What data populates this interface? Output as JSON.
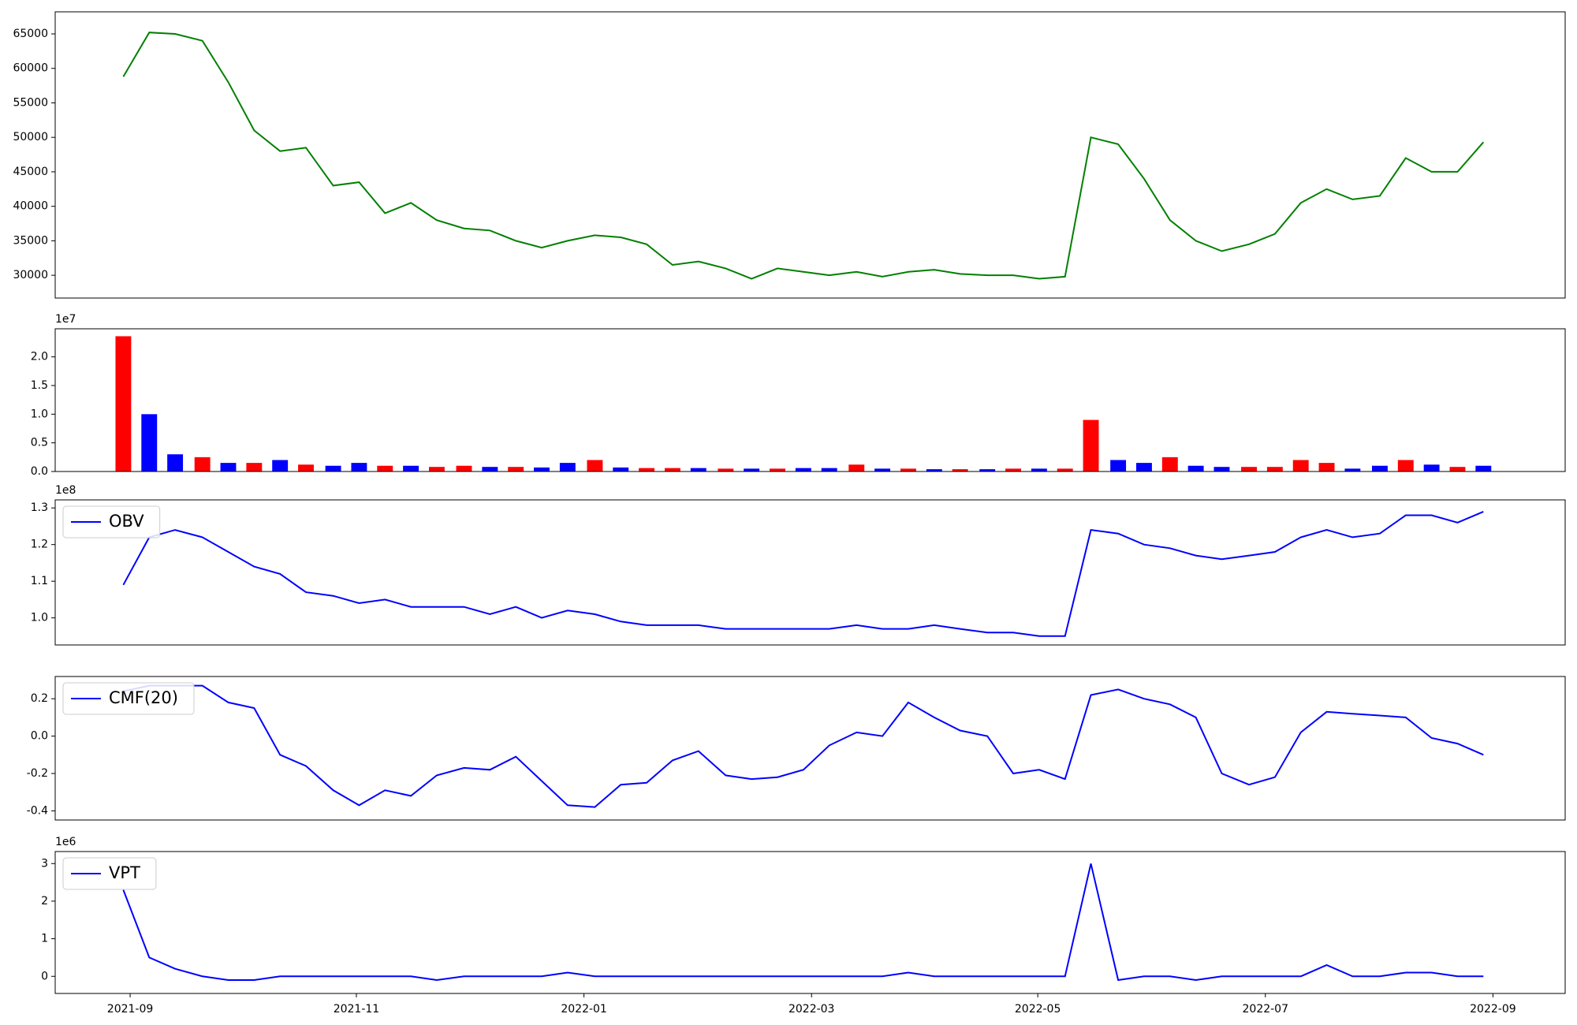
{
  "chart_data": [
    {
      "type": "line",
      "xlim": [
        2021.612,
        2022.72
      ],
      "ylim": [
        26700,
        68200
      ],
      "x": [
        2021.662,
        2021.681,
        2021.7,
        2021.72,
        2021.739,
        2021.758,
        2021.777,
        2021.796,
        2021.816,
        2021.835,
        2021.854,
        2021.873,
        2021.892,
        2021.912,
        2021.931,
        2021.95,
        2021.969,
        2021.988,
        2022.008,
        2022.027,
        2022.046,
        2022.065,
        2022.084,
        2022.104,
        2022.123,
        2022.142,
        2022.161,
        2022.18,
        2022.2,
        2022.219,
        2022.238,
        2022.257,
        2022.276,
        2022.296,
        2022.315,
        2022.334,
        2022.353,
        2022.372,
        2022.392,
        2022.411,
        2022.43,
        2022.449,
        2022.468,
        2022.488,
        2022.507,
        2022.526,
        2022.545,
        2022.564,
        2022.584,
        2022.603,
        2022.622,
        2022.641,
        2022.66
      ],
      "yticks": [
        30000,
        35000,
        40000,
        45000,
        50000,
        55000,
        60000,
        65000
      ],
      "series": [
        {
          "color": "#008000",
          "values": [
            58800,
            65200,
            65000,
            64000,
            58000,
            51000,
            48000,
            48500,
            43000,
            43500,
            39000,
            40500,
            38000,
            36800,
            36500,
            35000,
            34000,
            35000,
            35800,
            35500,
            34500,
            31500,
            32000,
            31000,
            29500,
            31000,
            30500,
            30000,
            30500,
            29800,
            30500,
            30800,
            30200,
            30000,
            30000,
            29500,
            29800,
            50000,
            49000,
            44000,
            38000,
            35000,
            33500,
            34500,
            36000,
            40500,
            42500,
            41000,
            41500,
            47000,
            45000,
            45000,
            49300
          ]
        }
      ]
    },
    {
      "type": "bar",
      "xlim": [
        2021.612,
        2022.72
      ],
      "ylim": [
        0,
        2.49
      ],
      "offset_label": "1e7",
      "x": [
        2021.662,
        2021.681,
        2021.7,
        2021.72,
        2021.739,
        2021.758,
        2021.777,
        2021.796,
        2021.816,
        2021.835,
        2021.854,
        2021.873,
        2021.892,
        2021.912,
        2021.931,
        2021.95,
        2021.969,
        2021.988,
        2022.008,
        2022.027,
        2022.046,
        2022.065,
        2022.084,
        2022.104,
        2022.123,
        2022.142,
        2022.161,
        2022.18,
        2022.2,
        2022.219,
        2022.238,
        2022.257,
        2022.276,
        2022.296,
        2022.315,
        2022.334,
        2022.353,
        2022.372,
        2022.392,
        2022.411,
        2022.43,
        2022.449,
        2022.468,
        2022.488,
        2022.507,
        2022.526,
        2022.545,
        2022.564,
        2022.584,
        2022.603,
        2022.622,
        2022.641,
        2022.66
      ],
      "yticks": [
        {
          "value": 0,
          "label": "0.0"
        },
        0.5,
        {
          "value": 1,
          "label": "1.0"
        },
        1.5,
        {
          "value": 2,
          "label": "2.0"
        }
      ],
      "series": [
        {
          "values": [
            2.36,
            1.0,
            0.3,
            0.25,
            0.15,
            0.15,
            0.2,
            0.12,
            0.1,
            0.15,
            0.1,
            0.1,
            0.08,
            0.1,
            0.08,
            0.08,
            0.07,
            0.15,
            0.2,
            0.07,
            0.06,
            0.06,
            0.06,
            0.05,
            0.05,
            0.05,
            0.06,
            0.06,
            0.12,
            0.05,
            0.05,
            0.04,
            0.04,
            0.04,
            0.05,
            0.05,
            0.05,
            0.9,
            0.2,
            0.15,
            0.25,
            0.1,
            0.08,
            0.08,
            0.08,
            0.2,
            0.15,
            0.05,
            0.1,
            0.2,
            0.12,
            0.08,
            0.1
          ],
          "colors": [
            "#ff0000",
            "#0000ff",
            "#0000ff",
            "#ff0000",
            "#0000ff",
            "#ff0000",
            "#0000ff",
            "#ff0000",
            "#0000ff",
            "#0000ff",
            "#ff0000",
            "#0000ff",
            "#ff0000",
            "#ff0000",
            "#0000ff",
            "#ff0000",
            "#0000ff",
            "#0000ff",
            "#ff0000",
            "#0000ff",
            "#ff0000",
            "#ff0000",
            "#0000ff",
            "#ff0000",
            "#0000ff",
            "#ff0000",
            "#0000ff",
            "#0000ff",
            "#ff0000",
            "#0000ff",
            "#ff0000",
            "#0000ff",
            "#ff0000",
            "#0000ff",
            "#ff0000",
            "#0000ff",
            "#ff0000",
            "#ff0000",
            "#0000ff",
            "#0000ff",
            "#ff0000",
            "#0000ff",
            "#0000ff",
            "#ff0000",
            "#ff0000",
            "#ff0000",
            "#ff0000",
            "#0000ff",
            "#0000ff",
            "#ff0000",
            "#0000ff",
            "#ff0000",
            "#0000ff"
          ]
        }
      ]
    },
    {
      "type": "line",
      "xlim": [
        2021.612,
        2022.72
      ],
      "ylim": [
        0.926,
        1.322
      ],
      "offset_label": "1e8",
      "legend": "upper left",
      "x": [
        2021.662,
        2021.681,
        2021.7,
        2021.72,
        2021.739,
        2021.758,
        2021.777,
        2021.796,
        2021.816,
        2021.835,
        2021.854,
        2021.873,
        2021.892,
        2021.912,
        2021.931,
        2021.95,
        2021.969,
        2021.988,
        2022.008,
        2022.027,
        2022.046,
        2022.065,
        2022.084,
        2022.104,
        2022.123,
        2022.142,
        2022.161,
        2022.18,
        2022.2,
        2022.219,
        2022.238,
        2022.257,
        2022.276,
        2022.296,
        2022.315,
        2022.334,
        2022.353,
        2022.372,
        2022.392,
        2022.411,
        2022.43,
        2022.449,
        2022.468,
        2022.488,
        2022.507,
        2022.526,
        2022.545,
        2022.564,
        2022.584,
        2022.603,
        2022.622,
        2022.641,
        2022.66
      ],
      "yticks": [
        {
          "value": 1,
          "label": "1.0"
        },
        1.1,
        1.2,
        1.3
      ],
      "series": [
        {
          "name": "OBV",
          "color": "#0000ff",
          "values": [
            1.09,
            1.22,
            1.24,
            1.22,
            1.18,
            1.14,
            1.12,
            1.07,
            1.06,
            1.04,
            1.05,
            1.03,
            1.03,
            1.03,
            1.01,
            1.03,
            1.0,
            1.02,
            1.01,
            0.99,
            0.98,
            0.98,
            0.98,
            0.97,
            0.97,
            0.97,
            0.97,
            0.97,
            0.98,
            0.97,
            0.97,
            0.98,
            0.97,
            0.96,
            0.96,
            0.95,
            0.95,
            1.24,
            1.23,
            1.2,
            1.19,
            1.17,
            1.16,
            1.17,
            1.18,
            1.22,
            1.24,
            1.22,
            1.23,
            1.28,
            1.28,
            1.26,
            1.29
          ]
        }
      ]
    },
    {
      "type": "line",
      "xlim": [
        2021.612,
        2022.72
      ],
      "ylim": [
        -0.449,
        0.319
      ],
      "legend": "upper left",
      "x": [
        2021.662,
        2021.681,
        2021.7,
        2021.72,
        2021.739,
        2021.758,
        2021.777,
        2021.796,
        2021.816,
        2021.835,
        2021.854,
        2021.873,
        2021.892,
        2021.912,
        2021.931,
        2021.95,
        2021.969,
        2021.988,
        2022.008,
        2022.027,
        2022.046,
        2022.065,
        2022.084,
        2022.104,
        2022.123,
        2022.142,
        2022.161,
        2022.18,
        2022.2,
        2022.219,
        2022.238,
        2022.257,
        2022.276,
        2022.296,
        2022.315,
        2022.334,
        2022.353,
        2022.372,
        2022.392,
        2022.411,
        2022.43,
        2022.449,
        2022.468,
        2022.488,
        2022.507,
        2022.526,
        2022.545,
        2022.564,
        2022.584,
        2022.603,
        2022.622,
        2022.641,
        2022.66
      ],
      "yticks": [
        -0.4,
        -0.2,
        {
          "value": 0,
          "label": "0.0"
        },
        0.2
      ],
      "series": [
        {
          "name": "CMF(20)",
          "color": "#0000ff",
          "values": [
            0.24,
            0.27,
            0.27,
            0.27,
            0.18,
            0.15,
            -0.1,
            -0.16,
            -0.29,
            -0.37,
            -0.29,
            -0.32,
            -0.21,
            -0.17,
            -0.18,
            -0.11,
            -0.24,
            -0.37,
            -0.38,
            -0.26,
            -0.25,
            -0.13,
            -0.08,
            -0.21,
            -0.23,
            -0.22,
            -0.18,
            -0.05,
            0.02,
            0.0,
            0.18,
            0.1,
            0.03,
            0.0,
            -0.2,
            -0.18,
            -0.23,
            0.22,
            0.25,
            0.2,
            0.17,
            0.1,
            -0.2,
            -0.26,
            -0.22,
            0.02,
            0.13,
            0.12,
            0.11,
            0.1,
            -0.01,
            -0.04,
            -0.1
          ]
        }
      ]
    },
    {
      "type": "line",
      "xlim": [
        2021.612,
        2022.72
      ],
      "ylim": [
        -0.456,
        3.32
      ],
      "offset_label": "1e6",
      "legend": "upper left",
      "x": [
        2021.662,
        2021.681,
        2021.7,
        2021.72,
        2021.739,
        2021.758,
        2021.777,
        2021.796,
        2021.816,
        2021.835,
        2021.854,
        2021.873,
        2021.892,
        2021.912,
        2021.931,
        2021.95,
        2021.969,
        2021.988,
        2022.008,
        2022.027,
        2022.046,
        2022.065,
        2022.084,
        2022.104,
        2022.123,
        2022.142,
        2022.161,
        2022.18,
        2022.2,
        2022.219,
        2022.238,
        2022.257,
        2022.276,
        2022.296,
        2022.315,
        2022.334,
        2022.353,
        2022.372,
        2022.392,
        2022.411,
        2022.43,
        2022.449,
        2022.468,
        2022.488,
        2022.507,
        2022.526,
        2022.545,
        2022.564,
        2022.584,
        2022.603,
        2022.622,
        2022.641,
        2022.66
      ],
      "yticks": [
        0,
        1,
        2,
        3
      ],
      "xticks": [
        {
          "value": 2021.667,
          "label": "2021-09"
        },
        {
          "value": 2021.833,
          "label": "2021-11"
        },
        {
          "value": 2022.0,
          "label": "2022-01"
        },
        {
          "value": 2022.167,
          "label": "2022-03"
        },
        {
          "value": 2022.333,
          "label": "2022-05"
        },
        {
          "value": 2022.5,
          "label": "2022-07"
        },
        {
          "value": 2022.667,
          "label": "2022-09"
        }
      ],
      "series": [
        {
          "name": "VPT",
          "color": "#0000ff",
          "values": [
            2.3,
            0.5,
            0.2,
            0.0,
            -0.1,
            -0.1,
            0.0,
            0.0,
            0.0,
            0.0,
            0.0,
            0.0,
            -0.1,
            0.0,
            0.0,
            0.0,
            0.0,
            0.1,
            0.0,
            0.0,
            0.0,
            0.0,
            0.0,
            0.0,
            0.0,
            0.0,
            0.0,
            0.0,
            0.0,
            0.0,
            0.1,
            0.0,
            0.0,
            0.0,
            0.0,
            0.0,
            0.0,
            3.0,
            -0.1,
            0.0,
            0.0,
            -0.1,
            0.0,
            0.0,
            0.0,
            0.0,
            0.3,
            0.0,
            0.0,
            0.1,
            0.1,
            0.0,
            0.0
          ]
        }
      ]
    }
  ]
}
